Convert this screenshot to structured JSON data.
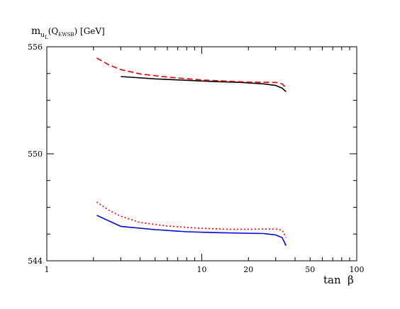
{
  "chart_data": {
    "type": "line",
    "ylabel": {
      "main": "m",
      "sub": "u",
      "subsub": "L",
      "paren_open": "(Q",
      "paren_sub": "EWSB",
      "paren_close": ") [GeV]"
    },
    "xlabel": "tan  β",
    "x_scale": "log",
    "xlim": [
      1,
      100
    ],
    "ylim": [
      544,
      556
    ],
    "x_ticks": [
      {
        "value": 1,
        "label": "1"
      },
      {
        "value": 10,
        "label": "10"
      },
      {
        "value": 20,
        "label": "20"
      },
      {
        "value": 50,
        "label": "50"
      },
      {
        "value": 100,
        "label": "100"
      }
    ],
    "y_ticks": [
      {
        "value": 544,
        "label": "544"
      },
      {
        "value": 550,
        "label": "550"
      },
      {
        "value": 556,
        "label": "556"
      }
    ],
    "grid": false,
    "series": [
      {
        "color": "#000000",
        "style": "solid",
        "x": [
          3,
          5,
          8,
          12,
          18,
          25,
          30,
          33,
          35
        ],
        "y": [
          554.33,
          554.2,
          554.12,
          554.05,
          554.0,
          553.92,
          553.83,
          553.68,
          553.48
        ]
      },
      {
        "color": "#e00000",
        "style": "dashed",
        "x": [
          2.1,
          2.5,
          3,
          4,
          6,
          10,
          15,
          20,
          25,
          30,
          33,
          35
        ],
        "y": [
          555.37,
          555.0,
          554.72,
          554.48,
          554.3,
          554.14,
          554.07,
          554.02,
          554.01,
          554.0,
          553.92,
          553.7
        ]
      },
      {
        "color": "#0000d0",
        "style": "solid",
        "x": [
          2.1,
          3,
          5,
          8,
          12,
          18,
          25,
          30,
          33,
          35
        ],
        "y": [
          546.55,
          545.93,
          545.75,
          545.63,
          545.58,
          545.55,
          545.53,
          545.45,
          545.3,
          544.85
        ]
      },
      {
        "color": "#e00000",
        "style": "dotted",
        "x": [
          2.1,
          2.5,
          3,
          4,
          6,
          10,
          15,
          20,
          25,
          30,
          33,
          35
        ],
        "y": [
          547.3,
          546.85,
          546.5,
          546.15,
          545.95,
          545.82,
          545.77,
          545.77,
          545.78,
          545.78,
          545.72,
          545.3
        ]
      }
    ]
  }
}
